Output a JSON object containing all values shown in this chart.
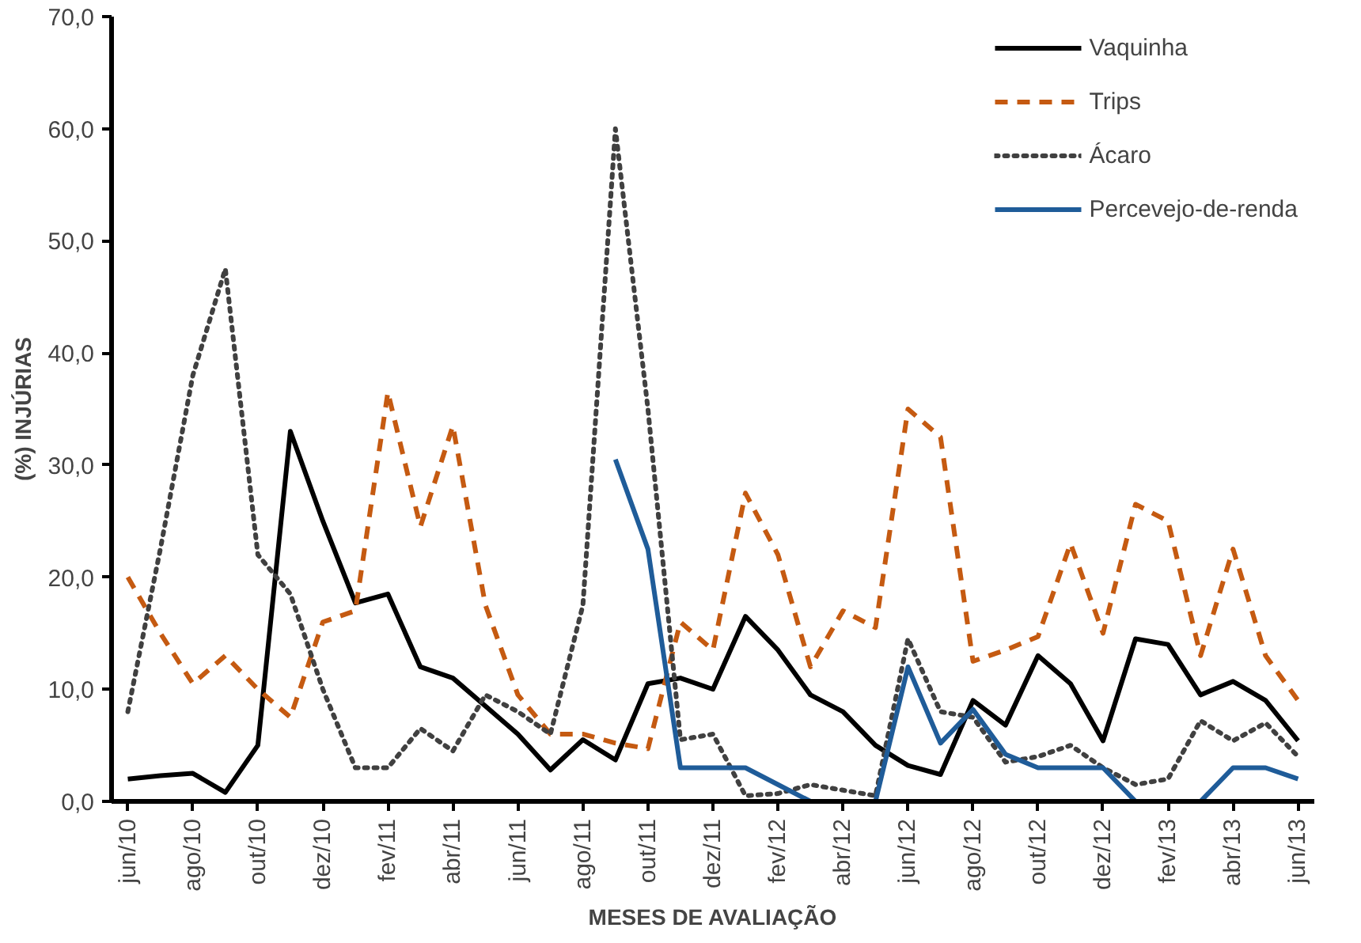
{
  "chart_data": {
    "type": "line",
    "xlabel": "MESES DE AVALIAÇÃO",
    "ylabel": "(%) INJÚRIAS",
    "categories": [
      "jun/10",
      null,
      "ago/10",
      null,
      "out/10",
      null,
      "dez/10",
      null,
      "fev/11",
      null,
      "abr/11",
      null,
      "jun/11",
      null,
      "ago/11",
      null,
      "out/11",
      null,
      "dez/11",
      null,
      "fev/12",
      null,
      "abr/12",
      null,
      "jun/12",
      null,
      "ago/12",
      null,
      "out/12",
      null,
      "dez/12",
      null,
      "fev/13",
      null,
      "abr/13",
      null,
      "jun/13"
    ],
    "ylim": [
      0,
      70
    ],
    "yticks": [
      {
        "value": 0,
        "label": "0,0"
      },
      {
        "value": 10,
        "label": "10,0"
      },
      {
        "value": 20,
        "label": "20,0"
      },
      {
        "value": 30,
        "label": "30,0"
      },
      {
        "value": 40,
        "label": "40,0"
      },
      {
        "value": 50,
        "label": "50,0"
      },
      {
        "value": 60,
        "label": "60,0"
      },
      {
        "value": 70,
        "label": "70,0"
      }
    ],
    "grid": false,
    "legend": "top right",
    "marker": "none",
    "series": [
      {
        "name": "Vaquinha",
        "color": "#000000",
        "line_style": "solid",
        "values": [
          2.0,
          2.3,
          2.5,
          0.8,
          5,
          33,
          25,
          17.7,
          18.5,
          12,
          11,
          8.5,
          6,
          2.8,
          5.5,
          3.7,
          10.5,
          11,
          10,
          16.5,
          13.5,
          9.5,
          8,
          5,
          3.2,
          2.4,
          9,
          6.8,
          13,
          10.5,
          5.4,
          14.5,
          14,
          9.5,
          10.7,
          9,
          5.4
        ]
      },
      {
        "name": "Trips",
        "color": "#c55a11",
        "line_style": "dashed",
        "values": [
          20,
          15,
          10.5,
          13,
          10,
          7.5,
          16,
          17,
          36.5,
          24.5,
          33.5,
          17.5,
          9.5,
          6,
          6,
          5.2,
          4.7,
          16,
          13.5,
          27.5,
          22,
          12,
          17,
          15.5,
          35,
          32.5,
          12.5,
          13.5,
          14.7,
          23,
          15,
          26.5,
          25,
          13,
          22.5,
          13,
          9
        ]
      },
      {
        "name": "Ácaro",
        "color": "#404040",
        "line_style": "dotted",
        "values": [
          8,
          22.5,
          38,
          47.5,
          22,
          18.5,
          10,
          3,
          3,
          6.5,
          4.5,
          9.5,
          8,
          6,
          17.5,
          60,
          35,
          5.5,
          6,
          0.5,
          0.7,
          1.5,
          1,
          0.5,
          14.5,
          8,
          7.5,
          3.5,
          4,
          5,
          3,
          1.5,
          2,
          7.2,
          5.4,
          7,
          4
        ]
      },
      {
        "name": "Percevejo-de-renda",
        "color": "#1f5c99",
        "line_style": "solid",
        "values": [
          null,
          null,
          null,
          null,
          null,
          null,
          null,
          null,
          null,
          null,
          null,
          null,
          null,
          null,
          null,
          30.5,
          22.5,
          3,
          3,
          3,
          1.5,
          0,
          0,
          0,
          12,
          5.2,
          8.2,
          4.2,
          3,
          3,
          3,
          0,
          0,
          0,
          3,
          3,
          2
        ]
      }
    ]
  }
}
